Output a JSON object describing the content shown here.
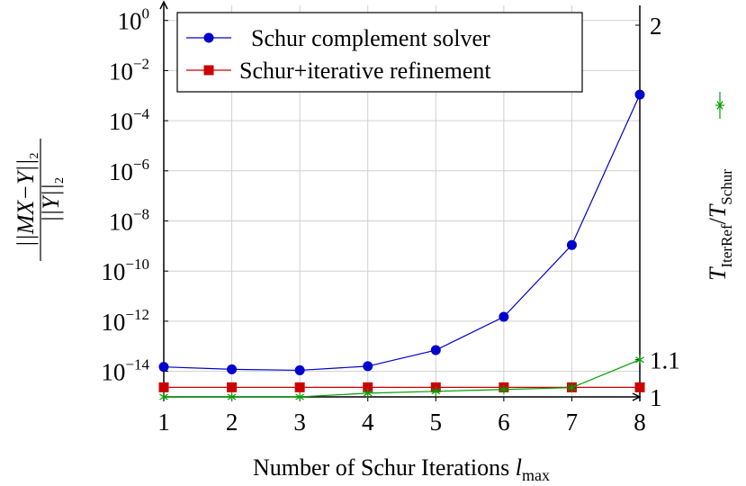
{
  "chart_data": {
    "type": "line",
    "xlabel_main": "Number of Schur Iterations ",
    "xlabel_var": "l",
    "xlabel_sub": "max",
    "ylabel_left": {
      "num": "||MX−Y||",
      "num_sub": "2",
      "den": "||Y||",
      "den_sub": "2"
    },
    "ylabel_right": {
      "t1": "T",
      "s1": "IterRef",
      "slash": "/",
      "t2": "T",
      "s2": "Schur"
    },
    "x": [
      1,
      2,
      3,
      4,
      5,
      6,
      7,
      8
    ],
    "x_ticks": [
      "1",
      "2",
      "3",
      "4",
      "5",
      "6",
      "7",
      "8"
    ],
    "xlim": [
      1,
      8
    ],
    "y_left": {
      "scale": "log",
      "ylim_exp": [
        -15.2,
        0.6
      ],
      "ticks": [
        {
          "base": "10",
          "exp": "0"
        },
        {
          "base": "10",
          "exp": "−2"
        },
        {
          "base": "10",
          "exp": "−4"
        },
        {
          "base": "10",
          "exp": "−6"
        },
        {
          "base": "10",
          "exp": "−8"
        },
        {
          "base": "10",
          "exp": "−10"
        },
        {
          "base": "10",
          "exp": "−12"
        },
        {
          "base": "10",
          "exp": "−14"
        }
      ],
      "tick_exps": [
        0,
        -2,
        -4,
        -6,
        -8,
        -10,
        -12,
        -14
      ]
    },
    "y_right": {
      "ylim": [
        1.0,
        2.0
      ],
      "ticks": [
        "2",
        "1.1",
        "1"
      ],
      "tick_values": [
        2,
        1.1,
        1.0
      ]
    },
    "grid": true,
    "legend_position": "top",
    "series": [
      {
        "name": "Schur complement solver",
        "axis": "left",
        "color": "#0000cc",
        "marker": "circle",
        "values": [
          1.5e-14,
          1.2e-14,
          1.1e-14,
          1.6e-14,
          7e-14,
          1.5e-12,
          1.1e-09,
          0.0011
        ]
      },
      {
        "name": "Schur+iterative refinement",
        "axis": "left",
        "color": "#cc0000",
        "marker": "square",
        "values": [
          2.3e-15,
          2.3e-15,
          2.3e-15,
          2.3e-15,
          2.3e-15,
          2.3e-15,
          2.3e-15,
          2.3e-15
        ]
      },
      {
        "name": "",
        "axis": "right",
        "color": "#00a000",
        "marker": "star",
        "values": [
          1.0,
          1.0,
          1.0,
          1.01,
          1.015,
          1.02,
          1.025,
          1.1
        ]
      }
    ]
  }
}
